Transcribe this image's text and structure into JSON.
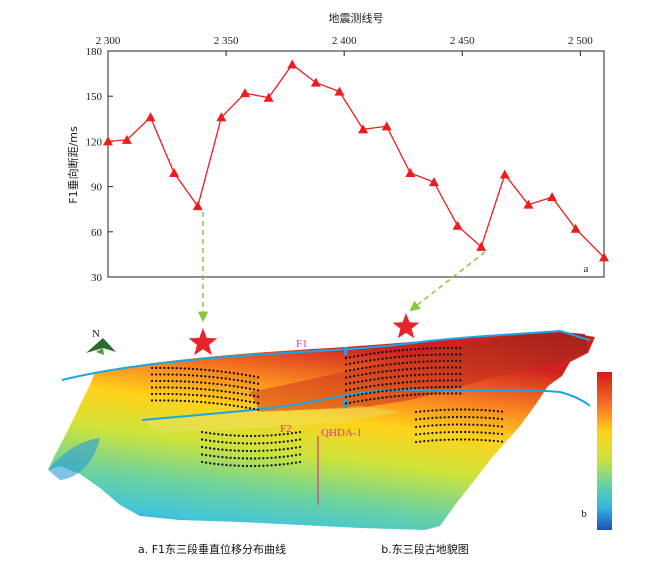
{
  "chart_data": {
    "type": "line",
    "xlabel": "地震测线号",
    "ylabel": "F1垂向断距/ms",
    "x_ticks": [
      "2 300",
      "2 350",
      "2 400",
      "2 450",
      "2 500"
    ],
    "y_ticks": [
      "180",
      "150",
      "120",
      "90",
      "60",
      "30"
    ],
    "xlim": [
      2300,
      2510
    ],
    "ylim": [
      30,
      180
    ],
    "grid": false,
    "panel_label": "a",
    "series": [
      {
        "color": "#ee1c1c",
        "marker": "triangle",
        "x": [
          2300,
          2308,
          2318,
          2328,
          2338,
          2348,
          2358,
          2368,
          2378,
          2388,
          2398,
          2408,
          2418,
          2428,
          2438,
          2448,
          2458,
          2468,
          2478,
          2488,
          2498,
          2510
        ],
        "y": [
          120,
          121,
          136,
          99,
          77,
          136,
          152,
          149,
          171,
          159,
          153,
          128,
          130,
          99,
          93,
          64,
          50,
          98,
          78,
          83,
          62,
          43
        ]
      }
    ]
  },
  "map": {
    "panel_label": "b",
    "north_label": "N",
    "fault_labels": [
      "F1",
      "F2"
    ],
    "well_label": "QHDA-1",
    "colors": {
      "fault": "#1aa6e6",
      "star": "#e8242a",
      "well": "#e0318a",
      "arrow": "#8cc63f",
      "dots": "#111111"
    }
  },
  "captions": {
    "a": "a. F1东三段垂直位移分布曲线",
    "b": "b.东三段古地貌图"
  }
}
